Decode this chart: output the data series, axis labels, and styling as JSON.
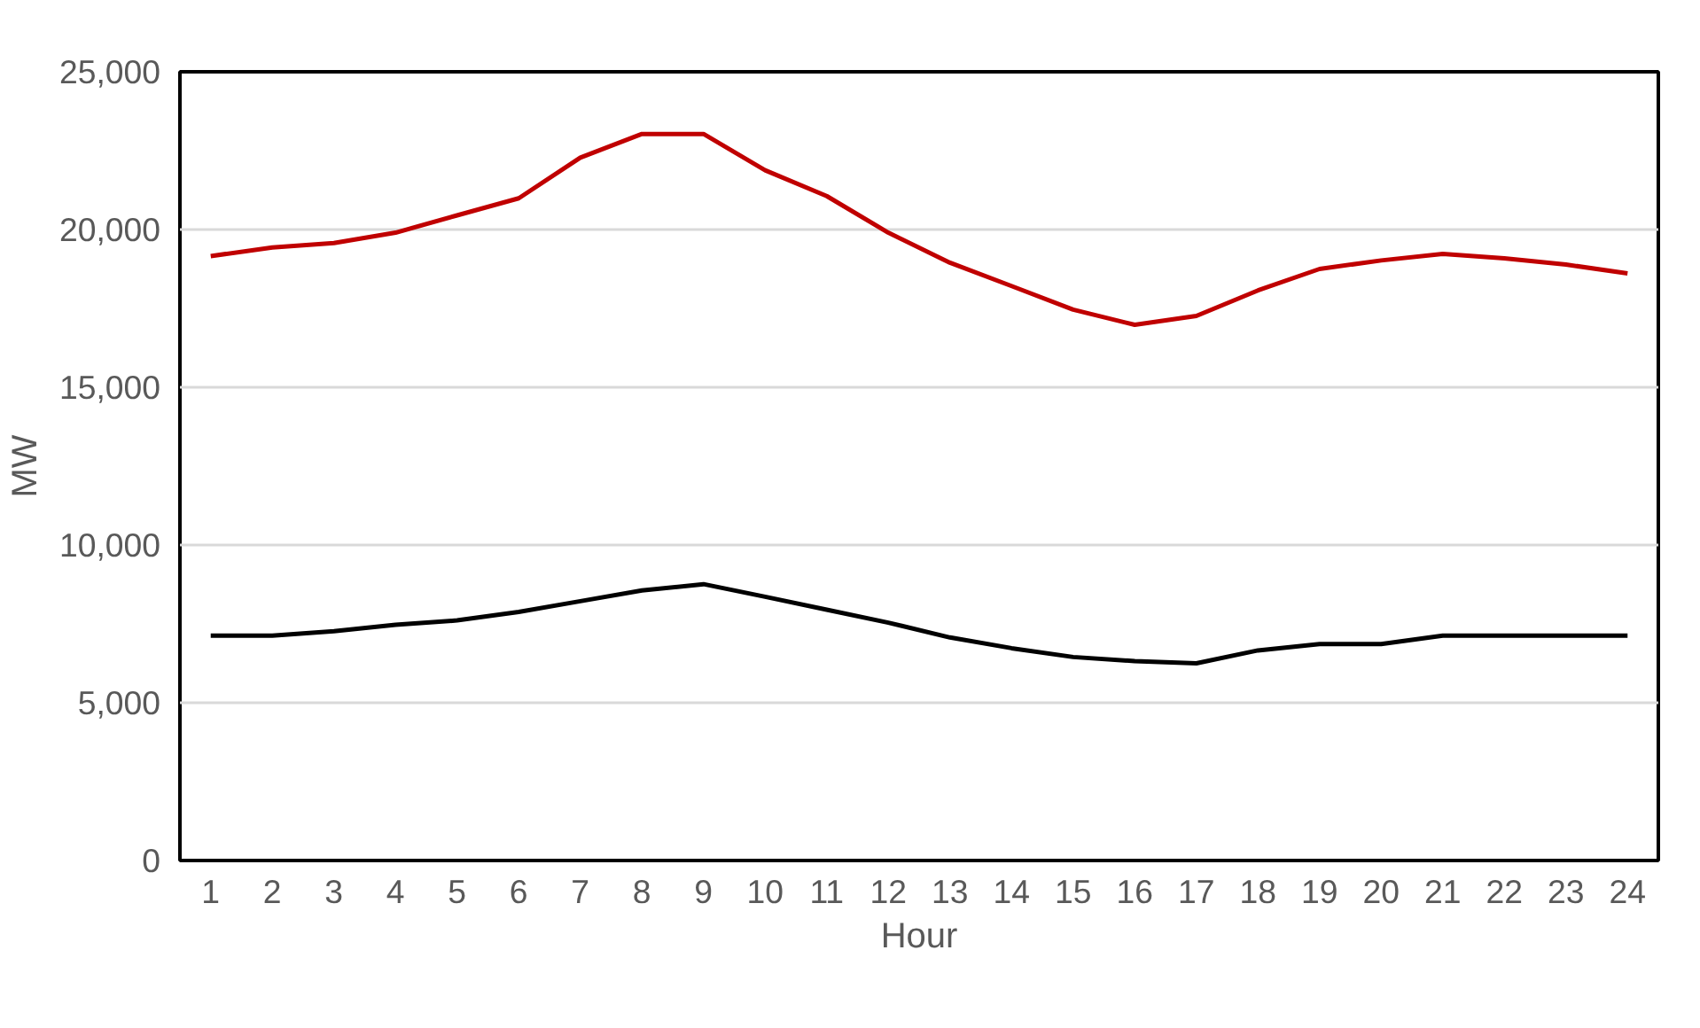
{
  "chart_data": {
    "type": "line",
    "xlabel": "Hour",
    "ylabel": "MW",
    "x": [
      1,
      2,
      3,
      4,
      5,
      6,
      7,
      8,
      9,
      10,
      11,
      12,
      13,
      14,
      15,
      16,
      17,
      18,
      19,
      20,
      21,
      22,
      23,
      24
    ],
    "xlim": [
      0.5,
      24.5
    ],
    "xticks": [
      1,
      2,
      3,
      4,
      5,
      6,
      7,
      8,
      9,
      10,
      11,
      12,
      13,
      14,
      15,
      16,
      17,
      18,
      19,
      20,
      21,
      22,
      23,
      24
    ],
    "ylim": [
      0,
      25000
    ],
    "yticks": [
      {
        "value": 0,
        "label": "0"
      },
      {
        "value": 5000,
        "label": "5,000"
      },
      {
        "value": 10000,
        "label": "10,000"
      },
      {
        "value": 15000,
        "label": "15,000"
      },
      {
        "value": 20000,
        "label": "20,000"
      },
      {
        "value": 25000,
        "label": "25,000"
      }
    ],
    "grid": "y",
    "marker": "none",
    "line_style": "solid",
    "series": [
      {
        "color": "#000000",
        "values": [
          7130,
          7130,
          7270,
          7470,
          7610,
          7880,
          8220,
          8560,
          8760,
          8360,
          7950,
          7540,
          7070,
          6730,
          6450,
          6320,
          6250,
          6660,
          6860,
          6860,
          7130,
          7130,
          7130,
          7130
        ]
      },
      {
        "color": "#c00000",
        "values": [
          19160,
          19430,
          19570,
          19900,
          20450,
          20990,
          22280,
          23030,
          23030,
          21880,
          21060,
          19900,
          18950,
          18210,
          17460,
          16980,
          17260,
          18070,
          18750,
          19020,
          19230,
          19090,
          18890,
          18610
        ]
      }
    ]
  }
}
